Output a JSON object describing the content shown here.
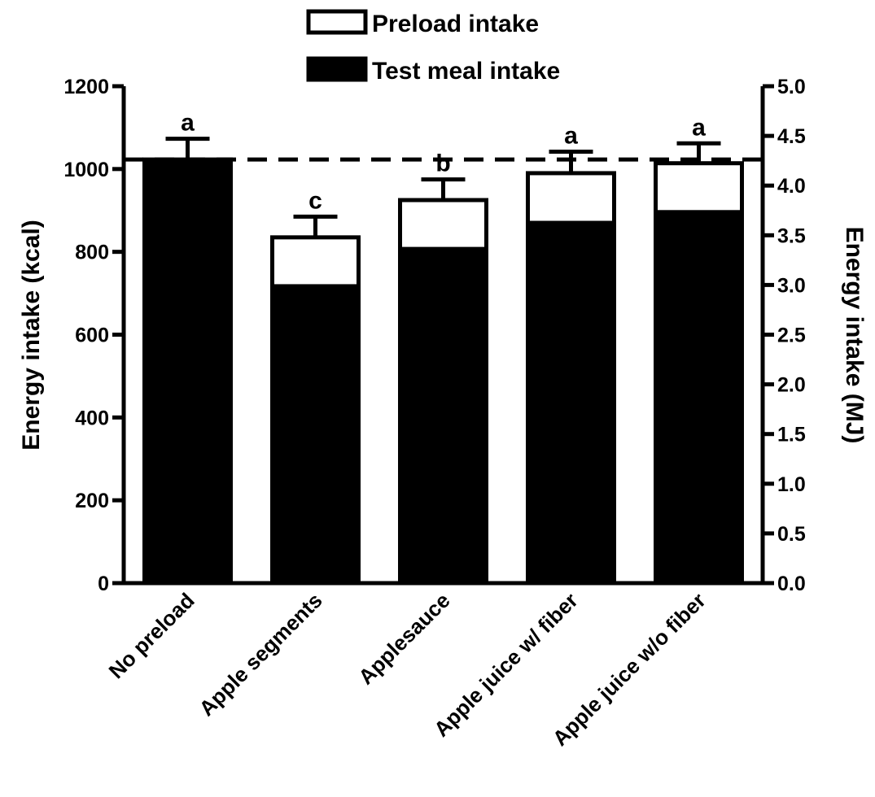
{
  "chart_data": {
    "type": "bar",
    "stacked": true,
    "categories": [
      "No preload",
      "Apple segments",
      "Applesauce",
      "Apple juice w/ fiber",
      "Apple juice w/o fiber"
    ],
    "series": [
      {
        "name": "Test meal intake",
        "fill": "#000000",
        "values": [
          1023,
          717,
          807,
          870,
          896
        ]
      },
      {
        "name": "Preload intake",
        "fill": "#ffffff",
        "values": [
          0,
          118,
          118,
          120,
          118
        ]
      }
    ],
    "totals": [
      1023,
      835,
      925,
      990,
      1014
    ],
    "error_bars": [
      50,
      50,
      50,
      52,
      48
    ],
    "significance_letters": [
      "a",
      "c",
      "b",
      "a",
      "a"
    ],
    "reference_line": 1023,
    "y_left": {
      "label": "Energy intake (kcal)",
      "range": [
        0,
        1200
      ],
      "ticks": [
        "0",
        "200",
        "400",
        "600",
        "800",
        "1000",
        "1200"
      ]
    },
    "y_right": {
      "label": "Energy intake (MJ)",
      "range": [
        0.0,
        5.0
      ],
      "ticks": [
        "0.0",
        "0.5",
        "1.0",
        "1.5",
        "2.0",
        "2.5",
        "3.0",
        "3.5",
        "4.0",
        "4.5",
        "5.0"
      ]
    },
    "legend": [
      {
        "label": "Preload intake",
        "fill": "#ffffff"
      },
      {
        "label": "Test meal intake",
        "fill": "#000000"
      }
    ],
    "legend_position": "top-center",
    "grid": false
  }
}
